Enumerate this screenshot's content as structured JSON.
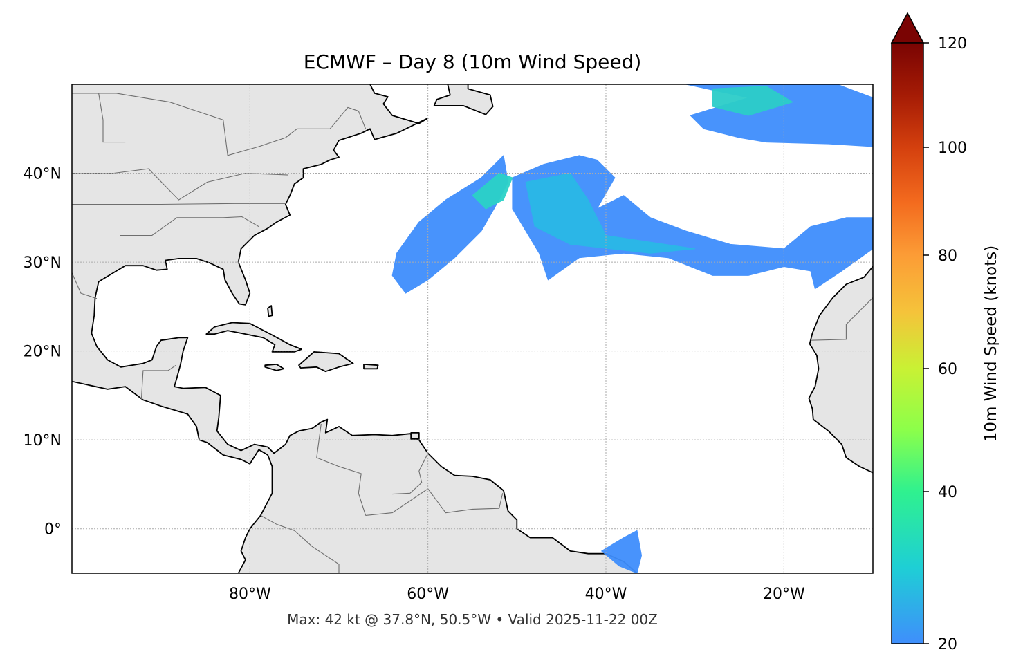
{
  "title": "ECMWF – Day 8 (10m Wind Speed)",
  "footer": "Max: 42 kt @ 37.8°N, 50.5°W • Valid 2025-11-22 00Z",
  "map": {
    "projection": "plate-carree",
    "extent_lon": [
      -100,
      -10
    ],
    "extent_lat": [
      -5,
      50
    ],
    "gridlines": true,
    "lon_ticks": [
      {
        "value": -80,
        "label": "80°W"
      },
      {
        "value": -60,
        "label": "60°W"
      },
      {
        "value": -40,
        "label": "40°W"
      },
      {
        "value": -20,
        "label": "20°W"
      }
    ],
    "lat_ticks": [
      {
        "value": 40,
        "label": "40°N"
      },
      {
        "value": 30,
        "label": "30°N"
      },
      {
        "value": 20,
        "label": "20°N"
      },
      {
        "value": 10,
        "label": "10°N"
      },
      {
        "value": 0,
        "label": "0°"
      }
    ],
    "land_color": "#e5e5e5",
    "coast_color": "#000000",
    "border_color": "#6e6e6e",
    "max_wind": {
      "value_kt": 42,
      "lat": 37.8,
      "lon": -50.5
    }
  },
  "colorbar": {
    "label": "10m Wind Speed (knots)",
    "colormap": "turbo",
    "range": [
      20,
      120
    ],
    "extend": "max",
    "ticks": [
      {
        "value": 20,
        "label": "20"
      },
      {
        "value": 40,
        "label": "40"
      },
      {
        "value": 60,
        "label": "60"
      },
      {
        "value": 80,
        "label": "80"
      },
      {
        "value": 100,
        "label": "100"
      },
      {
        "value": 120,
        "label": "120"
      }
    ],
    "colors": [
      "#3f8efc",
      "#1ecfd5",
      "#2ff18f",
      "#8cff4a",
      "#c9f134",
      "#f5c33a",
      "#fc9c36",
      "#f36a1e",
      "#d4400e",
      "#a51b05",
      "#7a0403"
    ]
  }
}
